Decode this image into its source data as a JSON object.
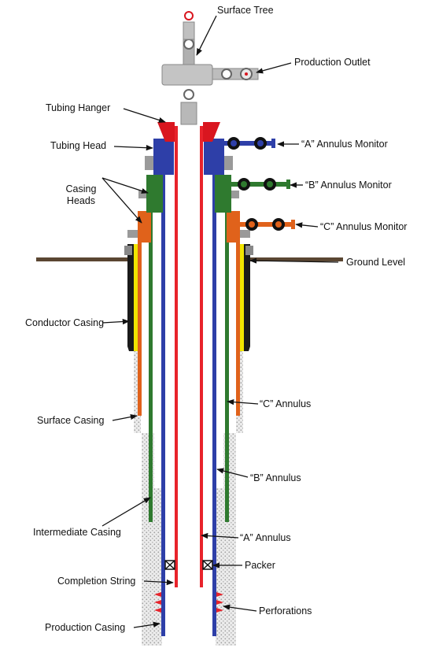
{
  "labels": {
    "surface_tree": "Surface Tree",
    "production_outlet": "Production Outlet",
    "tubing_hanger": "Tubing Hanger",
    "tubing_head": "Tubing Head",
    "casing_heads_line1": "Casing",
    "casing_heads_line2": "Heads",
    "a_annulus_monitor": "“A” Annulus Monitor",
    "b_annulus_monitor": "“B” Annulus Monitor",
    "c_annulus_monitor": "“C” Annulus Monitor",
    "ground_level": "Ground Level",
    "conductor_casing": "Conductor Casing",
    "surface_casing": "Surface Casing",
    "c_annulus": "“C” Annulus",
    "b_annulus": "“B” Annulus",
    "intermediate_casing": "Intermediate Casing",
    "a_annulus": "“A” Annulus",
    "packer": "Packer",
    "completion_string": "Completion String",
    "perforations": "Perforations",
    "production_casing": "Production Casing"
  },
  "colors": {
    "tubing": "#e8232b",
    "production_casing": "#2e3fa8",
    "intermediate_casing": "#2f7a2f",
    "surface_casing": "#e0621b",
    "conductor_casing": "#1a1a1a",
    "cement": "#f1e500",
    "ground": "#5a4632",
    "formation": "#d8d8d8"
  }
}
